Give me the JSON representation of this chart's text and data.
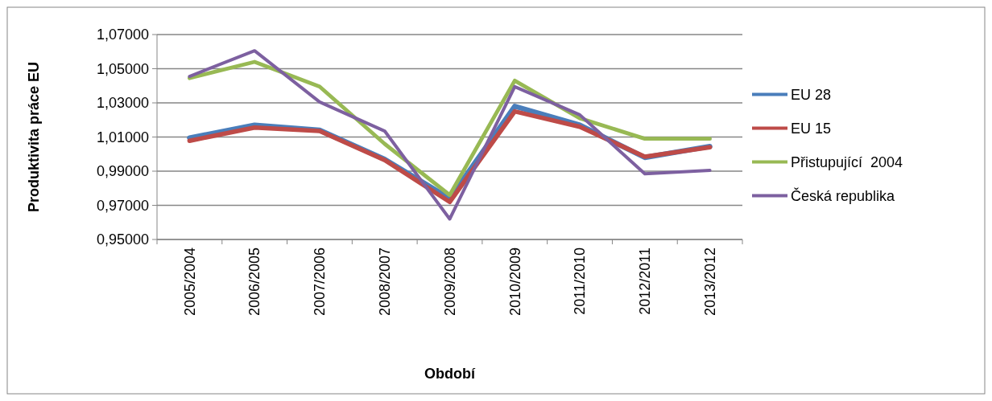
{
  "chart_data": {
    "type": "line",
    "xlabel": "Období",
    "ylabel": "Produktivita práce EU",
    "categories": [
      "2005/2004",
      "2006/2005",
      "2007/2006",
      "2008/2007",
      "2009/2008",
      "2010/2009",
      "2011/2010",
      "2012/2011",
      "2013/2012"
    ],
    "series": [
      {
        "name": "EU 28",
        "color": "#4a7ebb",
        "values": [
          1.0095,
          1.017,
          1.014,
          0.997,
          0.974,
          1.028,
          1.017,
          0.998,
          1.0045
        ]
      },
      {
        "name": "EU 15",
        "color": "#be4b48",
        "values": [
          1.0078,
          1.0155,
          1.0135,
          0.9965,
          0.972,
          1.025,
          1.016,
          0.9985,
          1.004
        ]
      },
      {
        "name": "Přistupující  2004",
        "color": "#98b954",
        "values": [
          1.0445,
          1.054,
          1.0395,
          1.006,
          0.976,
          1.043,
          1.021,
          1.009,
          1.009
        ]
      },
      {
        "name": "Česká republika",
        "color": "#7d60a0",
        "values": [
          1.0455,
          1.0605,
          1.0305,
          1.0135,
          0.962,
          1.0395,
          1.023,
          0.9885,
          0.9905
        ]
      }
    ],
    "ylim": [
      0.95,
      1.07
    ],
    "yticks": [
      {
        "value": 0.95,
        "label": "0,95000"
      },
      {
        "value": 0.97,
        "label": "0,97000"
      },
      {
        "value": 0.99,
        "label": "0,99000"
      },
      {
        "value": 1.01,
        "label": "1,01000"
      },
      {
        "value": 1.03,
        "label": "1,03000"
      },
      {
        "value": 1.05,
        "label": "1,05000"
      },
      {
        "value": 1.07,
        "label": "1,07000"
      }
    ],
    "grid": "y",
    "legend": "right",
    "line_style": "solid"
  }
}
